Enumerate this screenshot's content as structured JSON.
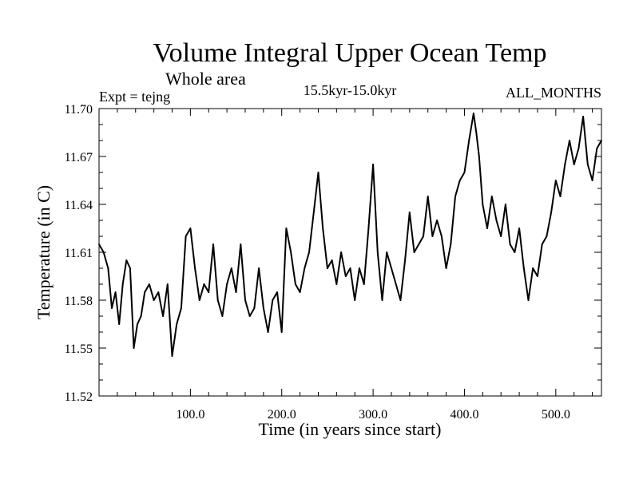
{
  "chart_data": {
    "type": "line",
    "title": "Volume Integral Upper Ocean Temp",
    "subtitle": "Whole area",
    "experiment": "Expt = tejng",
    "period": "15.5kyr-15.0kyr",
    "months": "ALL_MONTHS",
    "xlabel": "Time (in years since start)",
    "ylabel": "Temperature (in C)",
    "xlim": [
      0,
      550
    ],
    "ylim": [
      11.52,
      11.7
    ],
    "x_ticks": [
      100,
      200,
      300,
      400,
      500
    ],
    "x_tick_labels": [
      "100.0",
      "200.0",
      "300.0",
      "400.0",
      "500.0"
    ],
    "y_ticks": [
      11.52,
      11.55,
      11.58,
      11.61,
      11.64,
      11.67,
      11.7
    ],
    "y_tick_labels": [
      "11.52",
      "11.55",
      "11.58",
      "11.61",
      "11.64",
      "11.67",
      "11.70"
    ],
    "line_color": "#000000",
    "series": [
      {
        "name": "Volume Integral Upper Ocean Temp",
        "x": [
          0,
          5,
          10,
          14,
          18,
          22,
          26,
          30,
          34,
          38,
          42,
          46,
          50,
          55,
          60,
          65,
          70,
          75,
          80,
          85,
          90,
          95,
          100,
          105,
          110,
          115,
          120,
          125,
          130,
          135,
          140,
          145,
          150,
          155,
          160,
          165,
          170,
          175,
          180,
          185,
          190,
          195,
          200,
          205,
          210,
          215,
          220,
          225,
          230,
          235,
          240,
          245,
          250,
          255,
          260,
          265,
          270,
          275,
          280,
          285,
          290,
          295,
          300,
          305,
          310,
          315,
          320,
          325,
          330,
          335,
          340,
          345,
          350,
          355,
          360,
          365,
          370,
          375,
          380,
          385,
          390,
          395,
          400,
          405,
          410,
          413,
          416,
          420,
          425,
          430,
          435,
          440,
          445,
          450,
          455,
          460,
          465,
          470,
          475,
          480,
          485,
          490,
          495,
          500,
          505,
          510,
          515,
          520,
          525,
          530,
          535,
          540,
          545,
          550
        ],
        "values": [
          11.615,
          11.61,
          11.6,
          11.575,
          11.585,
          11.565,
          11.59,
          11.605,
          11.6,
          11.55,
          11.565,
          11.57,
          11.585,
          11.59,
          11.58,
          11.585,
          11.57,
          11.59,
          11.545,
          11.565,
          11.575,
          11.62,
          11.625,
          11.6,
          11.58,
          11.59,
          11.585,
          11.615,
          11.58,
          11.57,
          11.59,
          11.6,
          11.585,
          11.615,
          11.58,
          11.57,
          11.575,
          11.6,
          11.575,
          11.56,
          11.58,
          11.585,
          11.56,
          11.625,
          11.61,
          11.59,
          11.585,
          11.6,
          11.61,
          11.635,
          11.66,
          11.625,
          11.6,
          11.605,
          11.59,
          11.61,
          11.595,
          11.6,
          11.58,
          11.6,
          11.59,
          11.625,
          11.665,
          11.61,
          11.58,
          11.61,
          11.6,
          11.59,
          11.58,
          11.605,
          11.635,
          11.61,
          11.615,
          11.62,
          11.645,
          11.62,
          11.63,
          11.62,
          11.6,
          11.615,
          11.645,
          11.655,
          11.66,
          11.68,
          11.697,
          11.685,
          11.67,
          11.64,
          11.625,
          11.645,
          11.63,
          11.62,
          11.64,
          11.615,
          11.61,
          11.625,
          11.6,
          11.58,
          11.6,
          11.595,
          11.615,
          11.62,
          11.635,
          11.655,
          11.645,
          11.665,
          11.68,
          11.665,
          11.675,
          11.695,
          11.665,
          11.655,
          11.675,
          11.68
        ]
      }
    ]
  }
}
